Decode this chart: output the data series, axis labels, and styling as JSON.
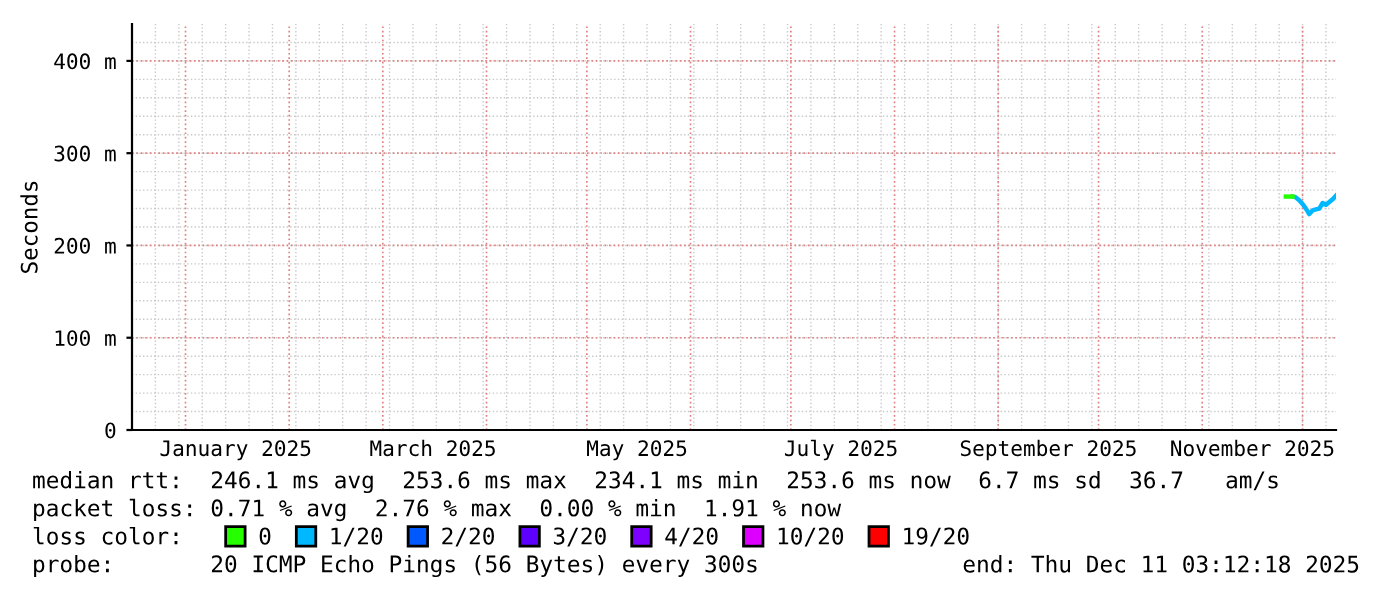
{
  "chart_data": {
    "type": "line",
    "ylabel": "Seconds",
    "x": [
      "2025-11-28",
      "2025-11-29",
      "2025-11-30",
      "2025-12-01",
      "2025-12-02",
      "2025-12-03",
      "2025-12-04",
      "2025-12-05",
      "2025-12-06",
      "2025-12-07",
      "2025-12-08",
      "2025-12-09",
      "2025-12-10",
      "2025-12-11"
    ],
    "series": [
      {
        "name": "0",
        "color": "#26ff00",
        "x": [
          "2025-11-26",
          "2025-11-28"
        ],
        "values": [
          253,
          253
        ]
      },
      {
        "name": "1/20",
        "color": "#00b8ff",
        "values": [
          253,
          252,
          249,
          245,
          240,
          234,
          238,
          239,
          240,
          246,
          244,
          247,
          250,
          254
        ]
      },
      {
        "name": "2/20",
        "color": "#0059ff",
        "values": [
          null,
          null,
          null,
          null,
          null,
          null,
          null,
          null,
          null,
          null,
          null,
          null,
          null,
          null
        ]
      },
      {
        "name": "3/20",
        "color": "#5e00ff",
        "values": [
          null,
          null,
          null,
          null,
          null,
          null,
          null,
          null,
          null,
          null,
          null,
          null,
          null,
          null
        ]
      },
      {
        "name": "4/20",
        "color": "#7e00ff",
        "values": [
          null,
          null,
          null,
          null,
          null,
          null,
          null,
          null,
          null,
          null,
          null,
          null,
          null,
          null
        ]
      },
      {
        "name": "10/20",
        "color": "#dd00ff",
        "values": [
          null,
          null,
          null,
          null,
          null,
          null,
          null,
          null,
          null,
          null,
          null,
          null,
          null,
          null
        ]
      },
      {
        "name": "19/20",
        "color": "#ff0000",
        "values": [
          null,
          null,
          null,
          null,
          null,
          null,
          null,
          null,
          null,
          null,
          null,
          null,
          null,
          null
        ]
      }
    ],
    "xlim": [
      "2024-12-16",
      "2025-12-11"
    ],
    "xticks": [
      {
        "value": "2025-01-16",
        "label": "January 2025"
      },
      {
        "value": "2025-03-16",
        "label": "March 2025"
      },
      {
        "value": "2025-05-16",
        "label": "May 2025"
      },
      {
        "value": "2025-07-16",
        "label": "July 2025"
      },
      {
        "value": "2025-09-16",
        "label": "September 2025"
      },
      {
        "value": "2025-11-16",
        "label": "November 2025"
      }
    ],
    "ylim": [
      0,
      440
    ],
    "yticks": [
      0,
      {
        "value": 100,
        "label": "100 m"
      },
      {
        "value": 200,
        "label": "200 m"
      },
      {
        "value": 300,
        "label": "300 m"
      },
      {
        "value": 400,
        "label": "400 m"
      }
    ],
    "grid": true,
    "legend": "bottom",
    "marker": "none",
    "line_style": "solid",
    "annotations": [
      "median rtt:  246.1 ms avg  253.6 ms max  234.1 ms min  253.6 ms now  6.7 ms sd  36.7   am/s",
      "packet loss: 0.71 % avg  2.76 % max  0.00 % min  1.91 % now",
      "loss color:",
      "probe:       20 ICMP Echo Pings (56 Bytes) every 300s",
      "end: Thu Dec 11 03:12:18 2025"
    ]
  }
}
